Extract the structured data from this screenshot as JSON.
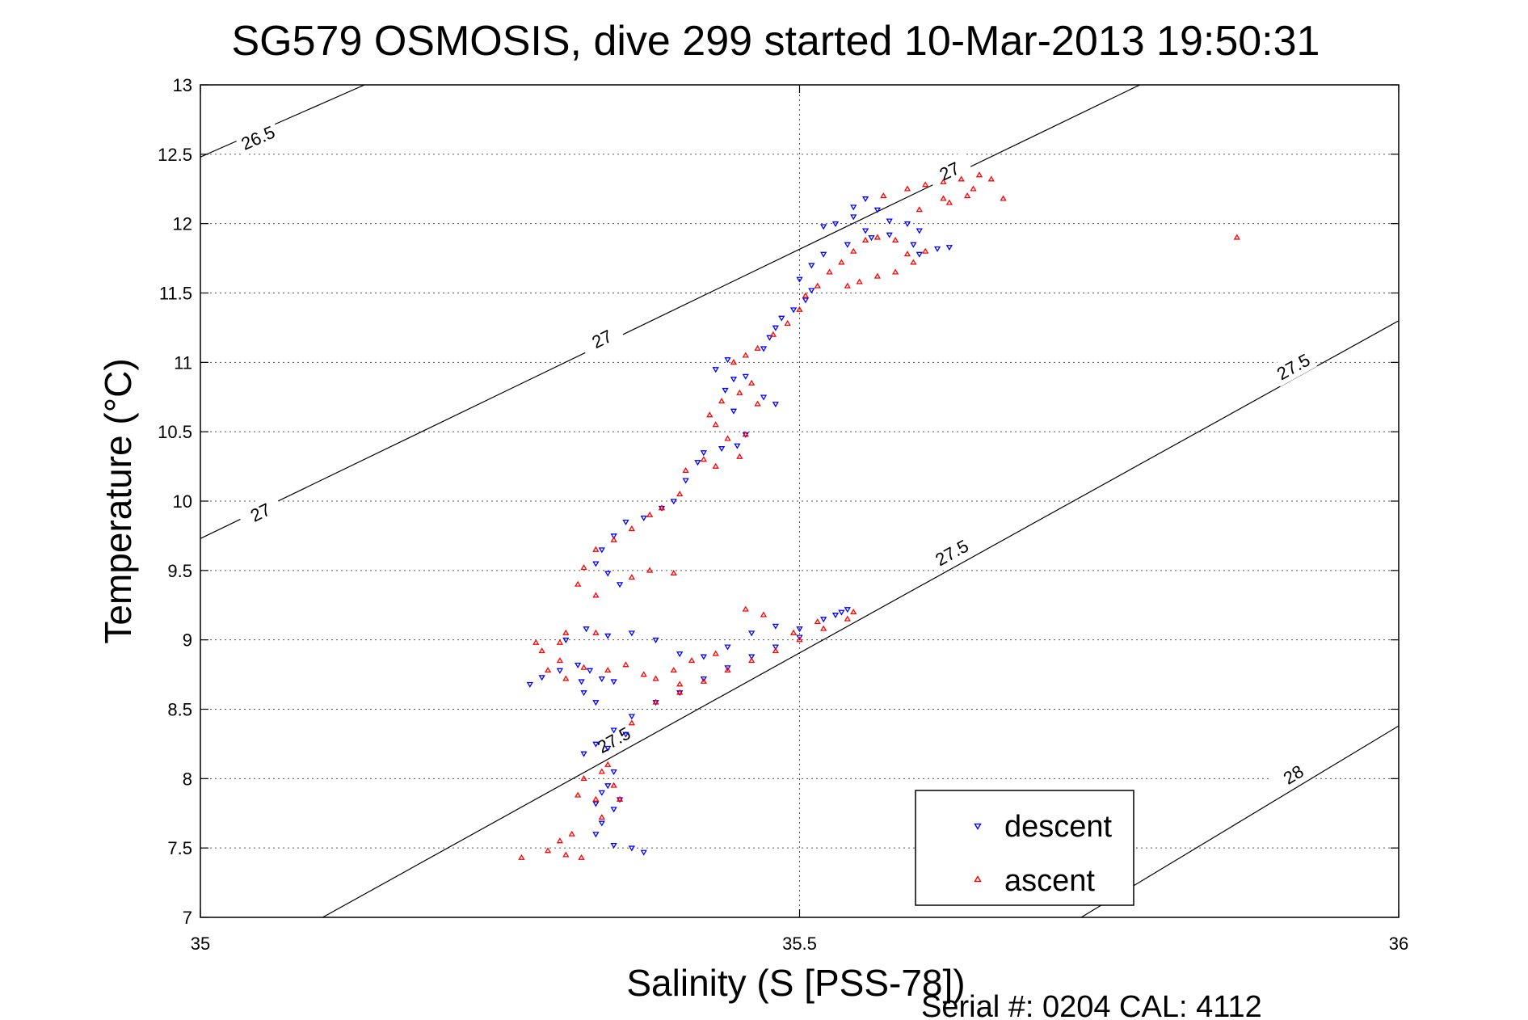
{
  "chart_data": {
    "type": "scatter",
    "title": "SG579 OSMOSIS, dive 299 started 10-Mar-2013 19:50:31",
    "xlabel": "Salinity (S [PSS-78])",
    "ylabel": "Temperature (°C)",
    "footer": "Serial #: 0204  CAL: 4112",
    "xlim": [
      35,
      36
    ],
    "ylim": [
      7,
      13
    ],
    "x_ticks": [
      35,
      35.5,
      36
    ],
    "x_tick_labels": [
      "35",
      "35.5",
      "36"
    ],
    "y_ticks": [
      7,
      7.5,
      8,
      8.5,
      9,
      9.5,
      10,
      10.5,
      11,
      11.5,
      12,
      12.5,
      13
    ],
    "y_tick_labels": [
      "7",
      "7.5",
      "8",
      "8.5",
      "9",
      "9.5",
      "10",
      "10.5",
      "11",
      "11.5",
      "12",
      "12.5",
      "13"
    ],
    "grid": true,
    "legend_position": "bottom-right",
    "density_contours": [
      {
        "label": "26.5",
        "points": [
          [
            35.0,
            12.48
          ],
          [
            35.137,
            13.0
          ]
        ],
        "label_at": [
          35.048,
          12.62
        ]
      },
      {
        "label": "27",
        "points": [
          [
            35.0,
            9.73
          ],
          [
            35.784,
            13.0
          ]
        ],
        "label_at": [
          35.05,
          9.92
        ],
        "label2_at": [
          35.335,
          11.17
        ],
        "label3_at": [
          35.625,
          12.38
        ]
      },
      {
        "label": "27.5",
        "points": [
          [
            35.102,
            7.0
          ],
          [
            36.0,
            11.3
          ]
        ],
        "label_at": [
          35.345,
          8.28
        ],
        "label2_at": [
          35.627,
          9.63
        ],
        "label3_at": [
          35.912,
          10.97
        ]
      },
      {
        "label": "28",
        "points": [
          [
            35.735,
            7.0
          ],
          [
            36.0,
            8.38
          ]
        ],
        "label_at": [
          35.912,
          8.03
        ]
      }
    ],
    "series": [
      {
        "name": "descent",
        "color": "#0000ff",
        "marker": "triangle-down",
        "points": [
          [
            35.275,
            8.68
          ],
          [
            35.285,
            8.73
          ],
          [
            35.3,
            8.78
          ],
          [
            35.315,
            8.82
          ],
          [
            35.325,
            8.78
          ],
          [
            35.335,
            8.72
          ],
          [
            35.345,
            8.7
          ],
          [
            35.33,
            8.55
          ],
          [
            35.32,
            8.62
          ],
          [
            35.318,
            8.7
          ],
          [
            35.305,
            9.0
          ],
          [
            35.322,
            9.08
          ],
          [
            35.34,
            9.03
          ],
          [
            35.36,
            9.05
          ],
          [
            35.38,
            9.0
          ],
          [
            35.4,
            8.9
          ],
          [
            35.42,
            8.88
          ],
          [
            35.44,
            8.95
          ],
          [
            35.46,
            9.05
          ],
          [
            35.48,
            9.1
          ],
          [
            35.5,
            9.08
          ],
          [
            35.52,
            9.15
          ],
          [
            35.535,
            9.2
          ],
          [
            35.54,
            9.22
          ],
          [
            35.53,
            9.18
          ],
          [
            35.5,
            9.02
          ],
          [
            35.48,
            8.95
          ],
          [
            35.46,
            8.88
          ],
          [
            35.44,
            8.8
          ],
          [
            35.42,
            8.72
          ],
          [
            35.4,
            8.62
          ],
          [
            35.38,
            8.55
          ],
          [
            35.36,
            8.45
          ],
          [
            35.345,
            8.35
          ],
          [
            35.33,
            8.25
          ],
          [
            35.32,
            8.18
          ],
          [
            35.34,
            8.22
          ],
          [
            35.355,
            8.32
          ],
          [
            35.345,
            8.05
          ],
          [
            35.34,
            7.95
          ],
          [
            35.335,
            7.9
          ],
          [
            35.35,
            7.85
          ],
          [
            35.345,
            7.78
          ],
          [
            35.33,
            7.82
          ],
          [
            35.335,
            7.68
          ],
          [
            35.33,
            7.6
          ],
          [
            35.345,
            7.52
          ],
          [
            35.36,
            7.5
          ],
          [
            35.37,
            7.47
          ],
          [
            35.35,
            9.4
          ],
          [
            35.34,
            9.48
          ],
          [
            35.33,
            9.55
          ],
          [
            35.335,
            9.65
          ],
          [
            35.345,
            9.75
          ],
          [
            35.355,
            9.85
          ],
          [
            35.37,
            9.88
          ],
          [
            35.385,
            9.95
          ],
          [
            35.395,
            10.0
          ],
          [
            35.405,
            10.15
          ],
          [
            35.415,
            10.28
          ],
          [
            35.42,
            10.35
          ],
          [
            35.435,
            10.38
          ],
          [
            35.448,
            10.4
          ],
          [
            35.455,
            10.48
          ],
          [
            35.445,
            10.65
          ],
          [
            35.438,
            10.8
          ],
          [
            35.43,
            10.95
          ],
          [
            35.44,
            11.02
          ],
          [
            35.445,
            10.88
          ],
          [
            35.455,
            10.9
          ],
          [
            35.47,
            10.75
          ],
          [
            35.48,
            10.7
          ],
          [
            35.47,
            11.1
          ],
          [
            35.475,
            11.18
          ],
          [
            35.48,
            11.25
          ],
          [
            35.485,
            11.32
          ],
          [
            35.495,
            11.38
          ],
          [
            35.505,
            11.45
          ],
          [
            35.51,
            11.52
          ],
          [
            35.5,
            11.6
          ],
          [
            35.51,
            11.7
          ],
          [
            35.52,
            11.78
          ],
          [
            35.54,
            11.85
          ],
          [
            35.555,
            11.95
          ],
          [
            35.545,
            12.05
          ],
          [
            35.53,
            12.0
          ],
          [
            35.52,
            11.98
          ],
          [
            35.545,
            12.12
          ],
          [
            35.555,
            12.18
          ],
          [
            35.565,
            12.1
          ],
          [
            35.575,
            12.02
          ],
          [
            35.59,
            12.0
          ],
          [
            35.6,
            11.95
          ],
          [
            35.595,
            11.85
          ],
          [
            35.6,
            11.78
          ],
          [
            35.615,
            11.82
          ],
          [
            35.625,
            11.83
          ],
          [
            35.56,
            11.9
          ],
          [
            35.575,
            11.92
          ]
        ]
      },
      {
        "name": "ascent",
        "color": "#ff0000",
        "marker": "triangle-up",
        "points": [
          [
            35.268,
            7.43
          ],
          [
            35.29,
            7.48
          ],
          [
            35.3,
            7.55
          ],
          [
            35.31,
            7.6
          ],
          [
            35.305,
            7.45
          ],
          [
            35.318,
            7.43
          ],
          [
            35.335,
            7.72
          ],
          [
            35.35,
            7.85
          ],
          [
            35.345,
            7.95
          ],
          [
            35.335,
            8.05
          ],
          [
            35.32,
            8.0
          ],
          [
            35.315,
            7.88
          ],
          [
            35.33,
            7.85
          ],
          [
            35.34,
            8.1
          ],
          [
            35.36,
            8.4
          ],
          [
            35.38,
            8.55
          ],
          [
            35.4,
            8.62
          ],
          [
            35.42,
            8.7
          ],
          [
            35.44,
            8.78
          ],
          [
            35.46,
            8.85
          ],
          [
            35.48,
            8.92
          ],
          [
            35.5,
            9.0
          ],
          [
            35.52,
            9.08
          ],
          [
            35.54,
            9.15
          ],
          [
            35.545,
            9.2
          ],
          [
            35.515,
            9.13
          ],
          [
            35.495,
            9.05
          ],
          [
            35.47,
            9.18
          ],
          [
            35.455,
            9.22
          ],
          [
            35.43,
            8.9
          ],
          [
            35.41,
            8.85
          ],
          [
            35.395,
            8.78
          ],
          [
            35.38,
            8.72
          ],
          [
            35.4,
            8.68
          ],
          [
            35.37,
            8.75
          ],
          [
            35.355,
            8.82
          ],
          [
            35.34,
            8.78
          ],
          [
            35.32,
            8.8
          ],
          [
            35.305,
            8.72
          ],
          [
            35.3,
            8.85
          ],
          [
            35.29,
            8.78
          ],
          [
            35.285,
            8.92
          ],
          [
            35.305,
            9.05
          ],
          [
            35.3,
            8.98
          ],
          [
            35.28,
            8.98
          ],
          [
            35.33,
            9.05
          ],
          [
            35.33,
            9.32
          ],
          [
            35.315,
            9.4
          ],
          [
            35.32,
            9.52
          ],
          [
            35.33,
            9.65
          ],
          [
            35.345,
            9.72
          ],
          [
            35.36,
            9.8
          ],
          [
            35.375,
            9.9
          ],
          [
            35.385,
            9.95
          ],
          [
            35.395,
            9.48
          ],
          [
            35.375,
            9.5
          ],
          [
            35.36,
            9.45
          ],
          [
            35.4,
            10.05
          ],
          [
            35.405,
            10.22
          ],
          [
            35.42,
            10.3
          ],
          [
            35.43,
            10.25
          ],
          [
            35.45,
            10.32
          ],
          [
            35.455,
            10.48
          ],
          [
            35.44,
            10.45
          ],
          [
            35.43,
            10.55
          ],
          [
            35.425,
            10.62
          ],
          [
            35.435,
            10.72
          ],
          [
            35.45,
            10.78
          ],
          [
            35.46,
            10.85
          ],
          [
            35.465,
            10.7
          ],
          [
            35.445,
            11.0
          ],
          [
            35.455,
            11.05
          ],
          [
            35.465,
            11.1
          ],
          [
            35.478,
            11.2
          ],
          [
            35.49,
            11.28
          ],
          [
            35.5,
            11.38
          ],
          [
            35.505,
            11.48
          ],
          [
            35.515,
            11.55
          ],
          [
            35.525,
            11.65
          ],
          [
            35.535,
            11.72
          ],
          [
            35.545,
            11.8
          ],
          [
            35.555,
            11.88
          ],
          [
            35.565,
            11.9
          ],
          [
            35.58,
            11.88
          ],
          [
            35.59,
            11.78
          ],
          [
            35.605,
            11.8
          ],
          [
            35.57,
            12.2
          ],
          [
            35.59,
            12.25
          ],
          [
            35.605,
            12.28
          ],
          [
            35.62,
            12.3
          ],
          [
            35.635,
            12.32
          ],
          [
            35.65,
            12.35
          ],
          [
            35.64,
            12.2
          ],
          [
            35.625,
            12.15
          ],
          [
            35.645,
            12.25
          ],
          [
            35.66,
            12.32
          ],
          [
            35.62,
            12.18
          ],
          [
            35.6,
            12.1
          ],
          [
            35.54,
            11.55
          ],
          [
            35.55,
            11.58
          ],
          [
            35.565,
            11.62
          ],
          [
            35.58,
            11.65
          ],
          [
            35.595,
            11.72
          ],
          [
            35.67,
            12.18
          ],
          [
            35.865,
            11.9
          ]
        ]
      }
    ]
  }
}
